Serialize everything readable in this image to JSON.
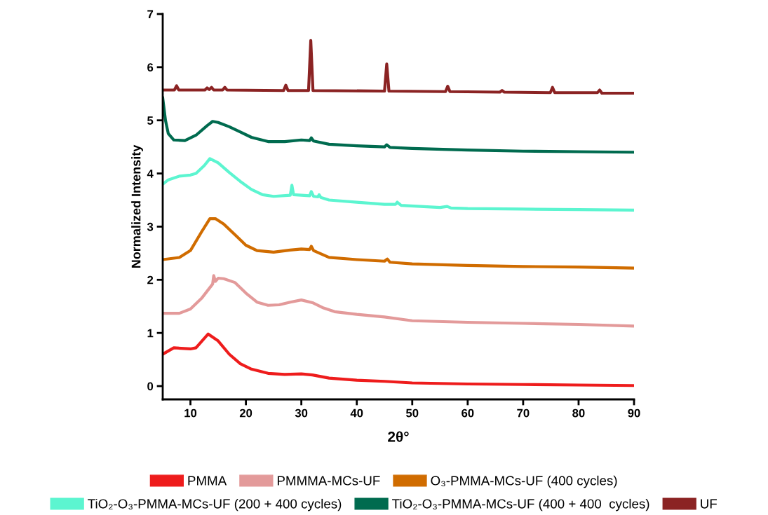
{
  "chart_data": {
    "type": "line",
    "xlabel": "2θ°",
    "ylabel": "Normalized Intensity",
    "xlim": [
      5,
      90
    ],
    "ylim": [
      -0.25,
      7
    ],
    "xticks": [
      10,
      20,
      30,
      40,
      50,
      60,
      70,
      80,
      90
    ],
    "yticks": [
      0,
      1,
      2,
      3,
      4,
      5,
      6,
      7
    ],
    "grid": false,
    "legend": "bottom",
    "marker": "none",
    "line_style": "solid",
    "series": [
      {
        "name": "PMMA",
        "color": "#ee1c1c",
        "x": [
          5,
          7,
          10,
          11,
          13.2,
          15,
          17,
          19,
          21,
          24,
          27,
          30,
          32,
          35,
          40,
          45,
          50,
          60,
          70,
          80,
          90
        ],
        "values": [
          0.6,
          0.72,
          0.7,
          0.72,
          0.98,
          0.85,
          0.6,
          0.42,
          0.32,
          0.24,
          0.22,
          0.23,
          0.21,
          0.15,
          0.11,
          0.09,
          0.06,
          0.04,
          0.03,
          0.02,
          0.01
        ]
      },
      {
        "name": "PMMMA-MCs-UF",
        "color": "#e39a9a",
        "x": [
          5,
          8,
          10,
          12,
          14,
          14.2,
          14.5,
          15,
          16,
          18,
          20,
          22,
          24,
          26,
          28,
          30,
          32,
          34,
          36,
          40,
          45,
          50,
          60,
          70,
          80,
          90
        ],
        "values": [
          1.37,
          1.37,
          1.45,
          1.65,
          1.92,
          2.08,
          1.97,
          2.03,
          2.02,
          1.95,
          1.75,
          1.58,
          1.52,
          1.53,
          1.58,
          1.62,
          1.57,
          1.47,
          1.4,
          1.35,
          1.3,
          1.23,
          1.2,
          1.18,
          1.16,
          1.13
        ]
      },
      {
        "name": "O₃-PMMA-MCs-UF (400 cycles)",
        "color": "#d06c00",
        "x": [
          5,
          8,
          10,
          12,
          13.5,
          14.5,
          16,
          18,
          20,
          22,
          25,
          28,
          30,
          31.5,
          31.8,
          32.2,
          35,
          40,
          45,
          45.5,
          46,
          50,
          60,
          70,
          80,
          90
        ],
        "values": [
          2.38,
          2.42,
          2.55,
          2.9,
          3.15,
          3.15,
          3.05,
          2.85,
          2.65,
          2.55,
          2.52,
          2.56,
          2.58,
          2.57,
          2.63,
          2.55,
          2.42,
          2.38,
          2.35,
          2.39,
          2.33,
          2.3,
          2.27,
          2.25,
          2.24,
          2.22
        ]
      },
      {
        "name": "TiO₂-O₃-PMMA-MCs-UF (200 + 400 cycles)",
        "color": "#5cf5d0",
        "x": [
          5,
          6,
          8,
          10,
          11,
          12.5,
          13.5,
          15,
          17,
          19,
          21,
          23,
          25,
          28,
          28.3,
          28.6,
          30,
          31.5,
          31.8,
          32.2,
          33,
          33.2,
          33.5,
          35,
          40,
          45,
          47,
          47.3,
          48,
          55,
          56.3,
          57,
          60,
          70,
          80,
          90
        ],
        "values": [
          3.8,
          3.88,
          3.95,
          3.97,
          4.0,
          4.15,
          4.28,
          4.2,
          4.02,
          3.85,
          3.7,
          3.6,
          3.57,
          3.59,
          3.78,
          3.6,
          3.59,
          3.58,
          3.66,
          3.57,
          3.56,
          3.6,
          3.55,
          3.5,
          3.46,
          3.42,
          3.42,
          3.46,
          3.4,
          3.36,
          3.38,
          3.35,
          3.34,
          3.33,
          3.32,
          3.31
        ]
      },
      {
        "name": "TiO₂-O₃-PMMA-MCs-UF (400 + 400  cycles)",
        "color": "#006b4f",
        "x": [
          5,
          5.5,
          6,
          7,
          9,
          11,
          13,
          14,
          15,
          17,
          19,
          21,
          24,
          27,
          30,
          31.5,
          31.8,
          32.2,
          35,
          40,
          45,
          45.4,
          46,
          50,
          60,
          70,
          80,
          90
        ],
        "values": [
          5.42,
          5.0,
          4.75,
          4.63,
          4.62,
          4.72,
          4.9,
          4.98,
          4.96,
          4.88,
          4.78,
          4.68,
          4.6,
          4.6,
          4.63,
          4.62,
          4.67,
          4.61,
          4.55,
          4.52,
          4.5,
          4.54,
          4.49,
          4.47,
          4.44,
          4.42,
          4.41,
          4.4
        ]
      },
      {
        "name": "UF",
        "color": "#8b2323",
        "x": [
          5,
          7.1,
          7.5,
          7.9,
          12.6,
          13,
          13.4,
          13.8,
          14.2,
          15.8,
          16.2,
          16.6,
          26.8,
          27.2,
          27.6,
          31.3,
          31.7,
          32.1,
          45,
          45.4,
          45.8,
          56,
          56.4,
          56.8,
          65.8,
          66.2,
          66.6,
          74.9,
          75.3,
          75.7,
          83.4,
          83.8,
          84.2,
          90
        ],
        "values": [
          5.57,
          5.57,
          5.65,
          5.57,
          5.57,
          5.61,
          5.58,
          5.62,
          5.57,
          5.57,
          5.62,
          5.57,
          5.56,
          5.66,
          5.56,
          5.56,
          6.5,
          5.56,
          5.55,
          6.06,
          5.55,
          5.54,
          5.64,
          5.54,
          5.53,
          5.56,
          5.53,
          5.52,
          5.62,
          5.52,
          5.52,
          5.57,
          5.51,
          5.51
        ]
      }
    ]
  }
}
